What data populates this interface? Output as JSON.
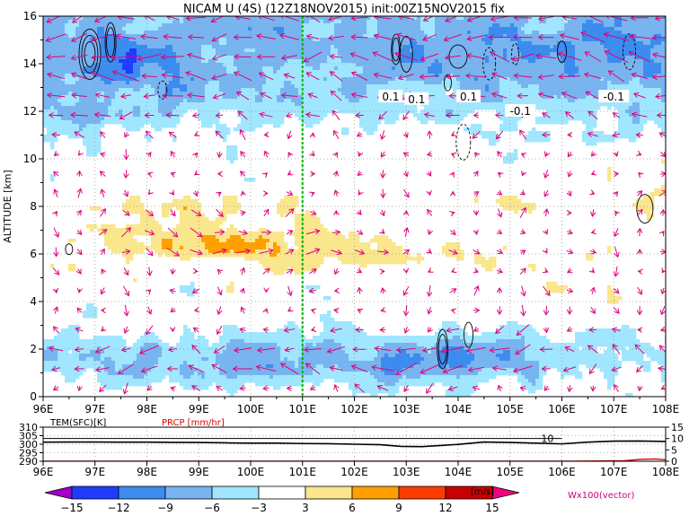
{
  "header": {
    "title": "NICAM U (4S) (12Z18NOV2015) init:00Z15NOV2015 fix"
  },
  "chart_data": [
    {
      "type": "heatmap",
      "title": "NICAM U (4S) (12Z18NOV2015) init:00Z15NOV2015 fix",
      "ylabel": "ALTITUDE [km]",
      "xlim": [
        96,
        108
      ],
      "ylim": [
        0,
        16
      ],
      "x_ticks": [
        "96E",
        "97E",
        "98E",
        "99E",
        "100E",
        "101E",
        "102E",
        "103E",
        "104E",
        "105E",
        "106E",
        "107E",
        "108E"
      ],
      "y_ticks": [
        0,
        2,
        4,
        6,
        8,
        10,
        12,
        14,
        16
      ],
      "grid": true,
      "marker_line": {
        "x": 101,
        "color": "#00b400"
      },
      "contour_labels": [
        "0.1",
        "0.1",
        "0.1",
        "-0.1",
        "-0.1"
      ],
      "color_scale": {
        "units": "[m/s]",
        "tick_labels": [
          "-15",
          "-12",
          "-9",
          "-6",
          "-3",
          "3",
          "6",
          "9",
          "12",
          "15"
        ],
        "colors": [
          "#a000c8",
          "#1e3cff",
          "#3c8cf0",
          "#78b4f0",
          "#a0e6ff",
          "#ffffff",
          "#fae68c",
          "#ffa000",
          "#ff3c00",
          "#c80000",
          "#f00082"
        ]
      },
      "vector_label": "Wx100(vector)",
      "vector_color": "#e0007a",
      "fields": {
        "easterly_bands": [
          {
            "alt_range": [
              0.2,
              3.2
            ],
            "category": "-6"
          },
          {
            "alt_range": [
              10.5,
              16
            ],
            "category": "-6"
          }
        ],
        "westerly_band": {
          "alt_range": [
            5.2,
            9.2
          ],
          "lon_range": [
            96.5,
            104
          ],
          "category": "3",
          "max_category": "6"
        }
      }
    },
    {
      "type": "line",
      "x_ticks": [
        "96E",
        "97E",
        "98E",
        "99E",
        "100E",
        "101E",
        "102E",
        "103E",
        "104E",
        "105E",
        "106E",
        "107E",
        "108E"
      ],
      "xlim": [
        96,
        108
      ],
      "left_axis": {
        "label": "TEM(SFC)[K]",
        "ticks": [
          "310",
          "305",
          "300",
          "295",
          "290"
        ],
        "range": [
          290,
          310
        ]
      },
      "right_axis": {
        "ticks": [
          "15",
          "10",
          "5",
          "0"
        ],
        "range": [
          0,
          15
        ]
      },
      "series": [
        {
          "name": "TEM(SFC)[K]",
          "color": "#000000",
          "x": [
            96,
            96.5,
            97,
            97.5,
            98,
            98.5,
            99,
            99.5,
            100,
            100.5,
            101,
            101.5,
            102,
            102.5,
            102.9,
            103.3,
            103.7,
            104,
            104.5,
            105,
            105.5,
            106,
            106.5,
            107,
            107.5,
            108
          ],
          "y": [
            301.2,
            301.3,
            301.3,
            301.2,
            301.2,
            301.1,
            301.0,
            300.8,
            300.6,
            300.6,
            300.4,
            300.3,
            300.0,
            299.7,
            298.7,
            298.6,
            299.3,
            299.9,
            301.3,
            301.0,
            300.6,
            300.2,
            301.2,
            301.8,
            301.9,
            301.6
          ]
        },
        {
          "name": "PRCP [mm/hr]",
          "color": "#e00000",
          "x": [
            96,
            98,
            100,
            102,
            104,
            106,
            107.2,
            107.5,
            107.8,
            108
          ],
          "y": [
            0,
            0,
            0,
            0,
            0,
            0,
            0.2,
            0.8,
            1.0,
            0.6
          ]
        }
      ],
      "annotations": [
        "10"
      ]
    }
  ]
}
